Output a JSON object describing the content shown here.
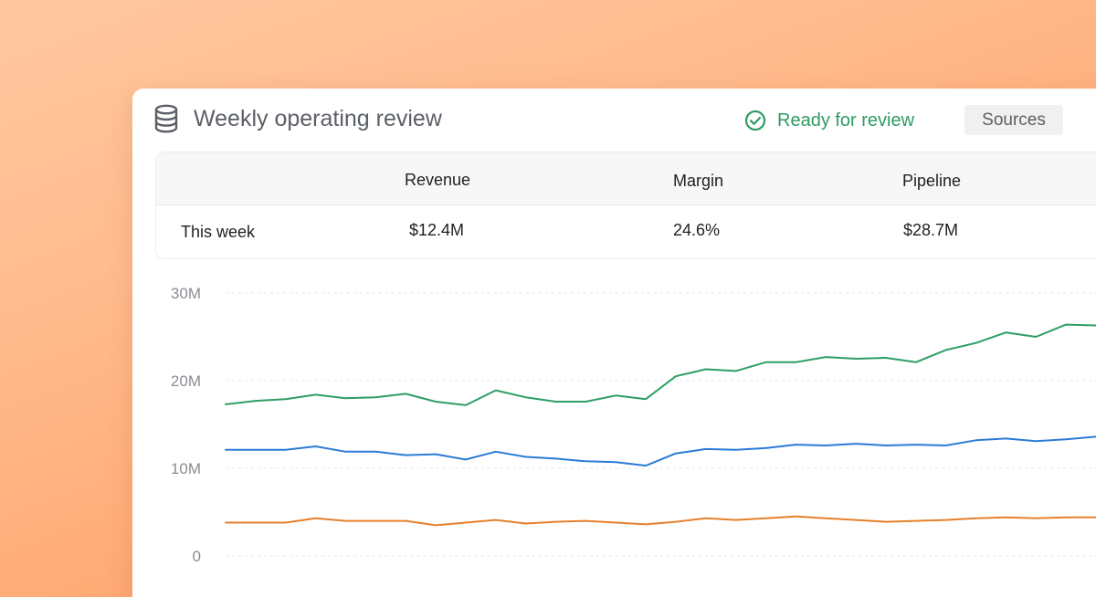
{
  "header": {
    "title": "Weekly operating review",
    "status": "Ready for review",
    "sources_label": "Sources",
    "icons": {
      "title_icon": "database-icon",
      "status_icon": "check-circle-icon"
    }
  },
  "kpi_table": {
    "columns": [
      "Revenue",
      "Margin",
      "Pipeline"
    ],
    "rows": [
      {
        "label": "This week",
        "values": [
          "$12.4M",
          "24.6%",
          "$28.7M"
        ]
      }
    ]
  },
  "colors": {
    "accent_green": "#2f9a63",
    "series_green": "#2e9e64",
    "series_blue": "#2b7bd6",
    "series_orange": "#e5802c"
  },
  "chart_data": {
    "type": "line",
    "ylim": [
      0,
      30
    ],
    "yticks": [
      "0",
      "10M",
      "20M",
      "30M"
    ],
    "grid": true,
    "series": [
      {
        "color": "#2e9e64",
        "values": [
          17.3,
          17.7,
          17.9,
          18.4,
          18.0,
          18.1,
          18.5,
          17.6,
          17.2,
          18.9,
          18.1,
          17.6,
          17.6,
          18.3,
          17.9,
          20.5,
          21.3,
          21.1,
          22.1,
          22.1,
          22.7,
          22.5,
          22.6,
          22.1,
          23.5,
          24.3,
          25.5,
          25.0,
          26.4,
          26.3
        ]
      },
      {
        "color": "#2b7bd6",
        "values": [
          12.1,
          12.1,
          12.1,
          12.5,
          11.9,
          11.9,
          11.5,
          11.6,
          11.0,
          11.9,
          11.3,
          11.1,
          10.8,
          10.7,
          10.3,
          11.7,
          12.2,
          12.1,
          12.3,
          12.7,
          12.6,
          12.8,
          12.6,
          12.7,
          12.6,
          13.2,
          13.4,
          13.1,
          13.3,
          13.6
        ]
      },
      {
        "color": "#e5802c",
        "values": [
          3.8,
          3.8,
          3.8,
          4.3,
          4.0,
          4.0,
          4.0,
          3.5,
          3.8,
          4.1,
          3.7,
          3.9,
          4.0,
          3.8,
          3.6,
          3.9,
          4.3,
          4.1,
          4.3,
          4.5,
          4.3,
          4.1,
          3.9,
          4.0,
          4.1,
          4.3,
          4.4,
          4.3,
          4.4,
          4.4
        ]
      }
    ]
  }
}
